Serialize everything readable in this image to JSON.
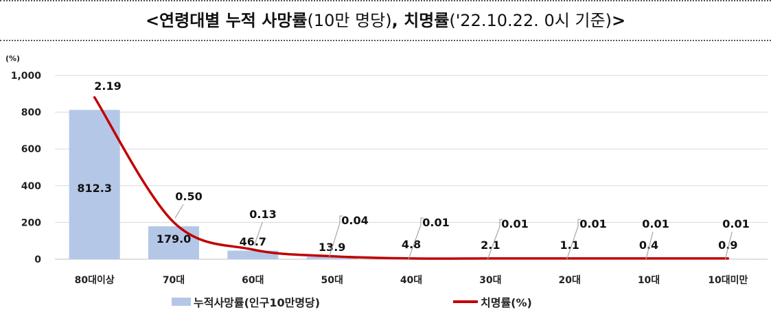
{
  "title": {
    "part1": "<연령대별 누적 사망률",
    "part2": "(10만 명당)",
    "part3": ", 치명률",
    "part4": "('22.10.22. 0시 기준)",
    "part5": ">"
  },
  "colors": {
    "bar": "#b4c7e7",
    "line": "#c00000",
    "grid": "#d9d9d9"
  },
  "chart_data": {
    "type": "bar",
    "categories": [
      "80대이상",
      "70대",
      "60대",
      "50대",
      "40대",
      "30대",
      "20대",
      "10대",
      "10대미만"
    ],
    "series": [
      {
        "name": "누적사망률(인구10만명당)",
        "type": "bar",
        "values": [
          812.3,
          179.0,
          46.7,
          13.9,
          4.8,
          2.1,
          1.1,
          0.4,
          0.9
        ],
        "labels": [
          "812.3",
          "179.0",
          "46.7",
          "13.9",
          "4.8",
          "2.1",
          "1.1",
          "0.4",
          "0.9"
        ]
      },
      {
        "name": "치명률(%)",
        "type": "line",
        "values": [
          2.19,
          0.5,
          0.13,
          0.04,
          0.01,
          0.01,
          0.01,
          0.01,
          0.01
        ],
        "labels": [
          "2.19",
          "0.50",
          "0.13",
          "0.04",
          "0.01",
          "0.01",
          "0.01",
          "0.01",
          "0.01"
        ]
      }
    ],
    "y_unit": "(%)",
    "ylim": [
      0,
      1000
    ],
    "yticks": [
      0,
      200,
      400,
      600,
      800,
      1000
    ],
    "ytick_labels": [
      "0",
      "200",
      "400",
      "600",
      "800",
      "1,000"
    ],
    "grid": true,
    "legend_position": "bottom"
  }
}
